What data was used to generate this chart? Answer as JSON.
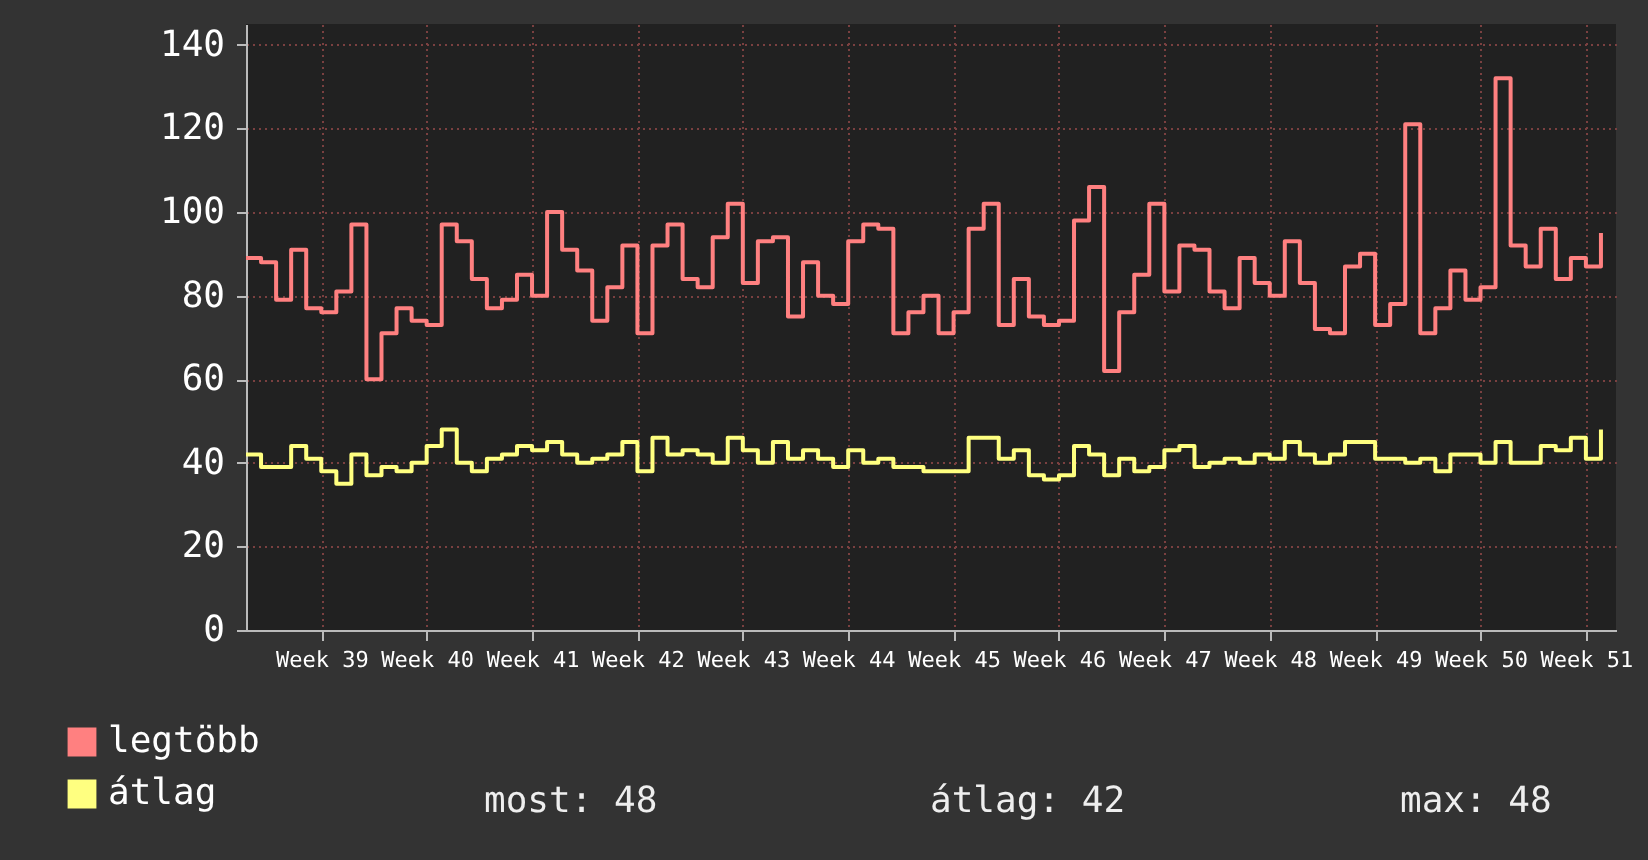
{
  "chart_data": {
    "type": "step",
    "categories": [
      null,
      null,
      null,
      null,
      null,
      "Week 39",
      null,
      null,
      null,
      null,
      null,
      null,
      "Week 40",
      null,
      null,
      null,
      null,
      null,
      null,
      "Week 41",
      null,
      null,
      null,
      null,
      null,
      null,
      "Week 42",
      null,
      null,
      null,
      null,
      null,
      null,
      "Week 43",
      null,
      null,
      null,
      null,
      null,
      null,
      "Week 44",
      null,
      null,
      null,
      null,
      null,
      null,
      "Week 45",
      null,
      null,
      null,
      null,
      null,
      null,
      "Week 46",
      null,
      null,
      null,
      null,
      null,
      null,
      "Week 47",
      null,
      null,
      null,
      null,
      null,
      null,
      "Week 48",
      null,
      null,
      null,
      null,
      null,
      null,
      "Week 49",
      null,
      null,
      null,
      null,
      null,
      null,
      "Week 50",
      null,
      null,
      null,
      null,
      null,
      null,
      "Week 51",
      null
    ],
    "series": [
      {
        "name": "legtöbb",
        "color": "#ff8080",
        "values": [
          89,
          88,
          79,
          91,
          77,
          76,
          81,
          97,
          60,
          71,
          77,
          74,
          73,
          97,
          93,
          84,
          77,
          79,
          85,
          80,
          100,
          91,
          86,
          74,
          82,
          92,
          71,
          92,
          97,
          84,
          82,
          94,
          102,
          83,
          93,
          94,
          75,
          88,
          80,
          78,
          93,
          97,
          96,
          71,
          76,
          80,
          71,
          76,
          96,
          102,
          73,
          84,
          75,
          73,
          74,
          98,
          106,
          62,
          76,
          85,
          102,
          81,
          92,
          91,
          81,
          77,
          89,
          83,
          80,
          93,
          83,
          72,
          71,
          87,
          90,
          73,
          78,
          121,
          71,
          77,
          86,
          79,
          82,
          132,
          92,
          87,
          96,
          84,
          89,
          87,
          95
        ]
      },
      {
        "name": "átlag",
        "color": "#ffff80",
        "values": [
          42,
          39,
          39,
          44,
          41,
          38,
          35,
          42,
          37,
          39,
          38,
          40,
          44,
          48,
          40,
          38,
          41,
          42,
          44,
          43,
          45,
          42,
          40,
          41,
          42,
          45,
          38,
          46,
          42,
          43,
          42,
          40,
          46,
          43,
          40,
          45,
          41,
          43,
          41,
          39,
          43,
          40,
          41,
          39,
          39,
          38,
          38,
          38,
          46,
          46,
          41,
          43,
          37,
          36,
          37,
          44,
          42,
          37,
          41,
          38,
          39,
          43,
          44,
          39,
          40,
          41,
          40,
          42,
          41,
          45,
          42,
          40,
          42,
          45,
          45,
          41,
          41,
          40,
          41,
          38,
          42,
          42,
          40,
          45,
          40,
          40,
          44,
          43,
          46,
          41,
          48
        ]
      }
    ],
    "ylim": [
      0,
      145
    ],
    "yticks": [
      0,
      20,
      40,
      60,
      80,
      100,
      120,
      140
    ],
    "grid": true,
    "legend": "bottom left",
    "annotations": [
      "most: 48",
      "átlag: 42",
      "max: 48"
    ]
  }
}
